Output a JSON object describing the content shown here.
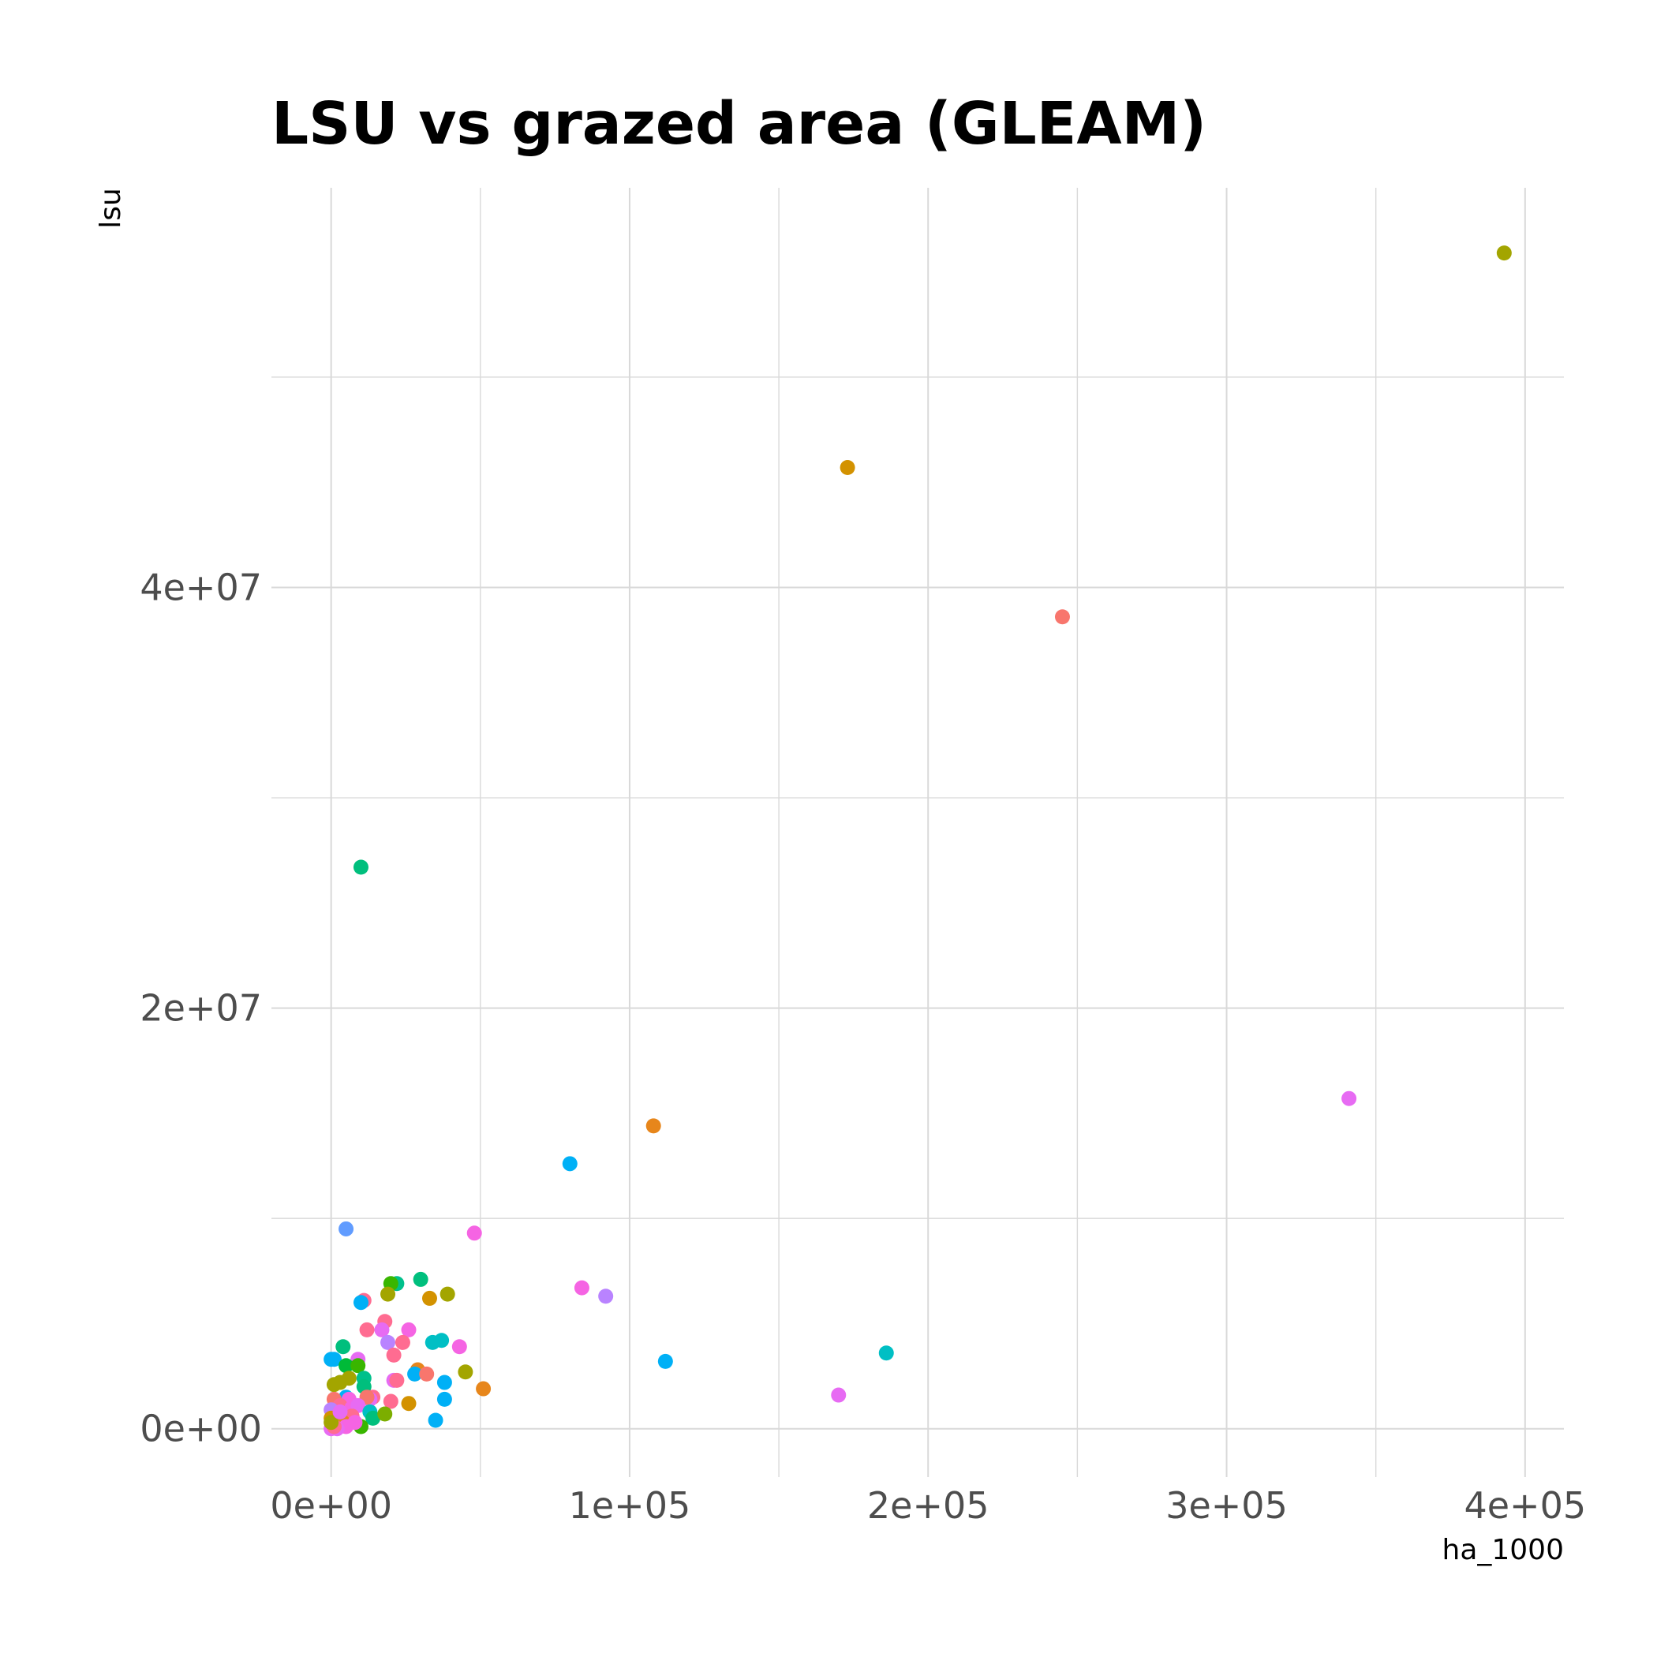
{
  "chart_data": {
    "type": "scatter",
    "title": "LSU vs grazed area (GLEAM)",
    "xlabel": "ha_1000",
    "ylabel": "lsu",
    "xlim": [
      -20000,
      413000
    ],
    "ylim": [
      -2300000,
      59000000
    ],
    "x_ticks": [
      0,
      100000,
      200000,
      300000,
      400000
    ],
    "x_tick_labels": [
      "0e+00",
      "1e+05",
      "2e+05",
      "3e+05",
      "4e+05"
    ],
    "y_ticks": [
      0,
      20000000,
      40000000
    ],
    "y_tick_labels": [
      "0e+00",
      "2e+07",
      "4e+07"
    ],
    "grid": true,
    "legend": "none",
    "points": [
      {
        "x": 393000,
        "y": 55900000,
        "color": "#a3a500"
      },
      {
        "x": 173000,
        "y": 45700000,
        "color": "#d39200"
      },
      {
        "x": 245000,
        "y": 38600000,
        "color": "#f8766d"
      },
      {
        "x": 10000,
        "y": 26700000,
        "color": "#00bf7d"
      },
      {
        "x": 341000,
        "y": 15700000,
        "color": "#e76bf3"
      },
      {
        "x": 108000,
        "y": 14400000,
        "color": "#e7861b"
      },
      {
        "x": 80000,
        "y": 12600000,
        "color": "#00b0f6"
      },
      {
        "x": 5000,
        "y": 9500000,
        "color": "#619cff"
      },
      {
        "x": 48000,
        "y": 9300000,
        "color": "#f564e3"
      },
      {
        "x": 84000,
        "y": 6700000,
        "color": "#f564e3"
      },
      {
        "x": 92000,
        "y": 6300000,
        "color": "#b983ff"
      },
      {
        "x": 112000,
        "y": 3200000,
        "color": "#00b0f6"
      },
      {
        "x": 186000,
        "y": 3600000,
        "color": "#00bfc4"
      },
      {
        "x": 170000,
        "y": 1600000,
        "color": "#e76bf3"
      },
      {
        "x": 51000,
        "y": 1900000,
        "color": "#e7861b"
      },
      {
        "x": 45000,
        "y": 2700000,
        "color": "#a3a500"
      },
      {
        "x": 43000,
        "y": 3900000,
        "color": "#f564e3"
      },
      {
        "x": 39000,
        "y": 6400000,
        "color": "#a3a500"
      },
      {
        "x": 33000,
        "y": 6200000,
        "color": "#d39200"
      },
      {
        "x": 30000,
        "y": 7100000,
        "color": "#00bf7d"
      },
      {
        "x": 22000,
        "y": 6900000,
        "color": "#00c08b"
      },
      {
        "x": 20000,
        "y": 6900000,
        "color": "#39b600"
      },
      {
        "x": 19000,
        "y": 6400000,
        "color": "#a3a500"
      },
      {
        "x": 11000,
        "y": 6100000,
        "color": "#ff6c91"
      },
      {
        "x": 10000,
        "y": 6000000,
        "color": "#00b0f6"
      },
      {
        "x": 18000,
        "y": 5100000,
        "color": "#ff6c91"
      },
      {
        "x": 12000,
        "y": 4700000,
        "color": "#ff6c91"
      },
      {
        "x": 17000,
        "y": 4700000,
        "color": "#e76bf3"
      },
      {
        "x": 26000,
        "y": 4700000,
        "color": "#f564e3"
      },
      {
        "x": 19000,
        "y": 4100000,
        "color": "#b983ff"
      },
      {
        "x": 24000,
        "y": 4100000,
        "color": "#ff6c91"
      },
      {
        "x": 34000,
        "y": 4100000,
        "color": "#00bfc4"
      },
      {
        "x": 37000,
        "y": 4200000,
        "color": "#00bfc4"
      },
      {
        "x": 4000,
        "y": 3900000,
        "color": "#00bf7d"
      },
      {
        "x": 21000,
        "y": 3500000,
        "color": "#ff6c91"
      },
      {
        "x": 0,
        "y": 3300000,
        "color": "#00b0f6"
      },
      {
        "x": 1000,
        "y": 3300000,
        "color": "#00b0f6"
      },
      {
        "x": 9000,
        "y": 3300000,
        "color": "#e76bf3"
      },
      {
        "x": 5000,
        "y": 3000000,
        "color": "#00ba38"
      },
      {
        "x": 9000,
        "y": 3000000,
        "color": "#39b600"
      },
      {
        "x": 29000,
        "y": 2800000,
        "color": "#e7861b"
      },
      {
        "x": 28000,
        "y": 2600000,
        "color": "#00b0f6"
      },
      {
        "x": 32000,
        "y": 2600000,
        "color": "#f8766d"
      },
      {
        "x": 38000,
        "y": 2200000,
        "color": "#00b0f6"
      },
      {
        "x": 6000,
        "y": 2400000,
        "color": "#a3a500"
      },
      {
        "x": 3000,
        "y": 2200000,
        "color": "#a3a500"
      },
      {
        "x": 1000,
        "y": 2100000,
        "color": "#a3a500"
      },
      {
        "x": 11000,
        "y": 2400000,
        "color": "#00c08b"
      },
      {
        "x": 11000,
        "y": 2000000,
        "color": "#00bf7d"
      },
      {
        "x": 21000,
        "y": 2300000,
        "color": "#e76bf3"
      },
      {
        "x": 22000,
        "y": 2300000,
        "color": "#ff6c91"
      },
      {
        "x": 38000,
        "y": 1400000,
        "color": "#00b0f6"
      },
      {
        "x": 20000,
        "y": 1300000,
        "color": "#ff6c91"
      },
      {
        "x": 26000,
        "y": 1200000,
        "color": "#d39200"
      },
      {
        "x": 14000,
        "y": 1500000,
        "color": "#ff6c91"
      },
      {
        "x": 13000,
        "y": 1400000,
        "color": "#e76bf3"
      },
      {
        "x": 12000,
        "y": 1500000,
        "color": "#f8766d"
      },
      {
        "x": 5000,
        "y": 1500000,
        "color": "#00b0f6"
      },
      {
        "x": 6000,
        "y": 1400000,
        "color": "#f564e3"
      },
      {
        "x": 1000,
        "y": 1400000,
        "color": "#f8766d"
      },
      {
        "x": 3000,
        "y": 1100000,
        "color": "#ff6c91"
      },
      {
        "x": 7000,
        "y": 1000000,
        "color": "#f564e3"
      },
      {
        "x": 9000,
        "y": 1100000,
        "color": "#e76bf3"
      },
      {
        "x": 0,
        "y": 900000,
        "color": "#b983ff"
      },
      {
        "x": 13000,
        "y": 800000,
        "color": "#00bfc4"
      },
      {
        "x": 14000,
        "y": 500000,
        "color": "#00bf7d"
      },
      {
        "x": 18000,
        "y": 700000,
        "color": "#7cae00"
      },
      {
        "x": 35000,
        "y": 400000,
        "color": "#00b0f6"
      },
      {
        "x": 10000,
        "y": 100000,
        "color": "#39b600"
      },
      {
        "x": 7000,
        "y": 600000,
        "color": "#ff6c91"
      },
      {
        "x": 2000,
        "y": 600000,
        "color": "#f564e3"
      },
      {
        "x": 0,
        "y": 500000,
        "color": "#d39200"
      },
      {
        "x": 4000,
        "y": 300000,
        "color": "#e7861b"
      },
      {
        "x": 8000,
        "y": 300000,
        "color": "#f564e3"
      },
      {
        "x": 5000,
        "y": 100000,
        "color": "#f564e3"
      },
      {
        "x": 2000,
        "y": 0,
        "color": "#e76bf3"
      },
      {
        "x": 0,
        "y": 0,
        "color": "#e76bf3"
      },
      {
        "x": 1000,
        "y": 100000,
        "color": "#ff6c91"
      },
      {
        "x": 0,
        "y": 300000,
        "color": "#a3a500"
      },
      {
        "x": 3000,
        "y": 800000,
        "color": "#e76bf3"
      }
    ]
  }
}
